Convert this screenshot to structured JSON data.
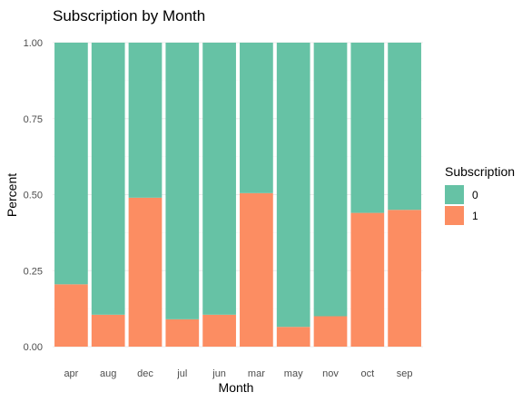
{
  "chart_data": {
    "type": "bar",
    "stacked": true,
    "title": "Subscription by Month",
    "xlabel": "Month",
    "ylabel": "Percent",
    "categories": [
      "apr",
      "aug",
      "dec",
      "jul",
      "jun",
      "mar",
      "may",
      "nov",
      "oct",
      "sep"
    ],
    "series": [
      {
        "name": "0",
        "color": "#66c2a5",
        "values": [
          0.795,
          0.895,
          0.51,
          0.91,
          0.895,
          0.495,
          0.935,
          0.9,
          0.56,
          0.55
        ]
      },
      {
        "name": "1",
        "color": "#fc8d62",
        "values": [
          0.205,
          0.105,
          0.49,
          0.09,
          0.105,
          0.505,
          0.065,
          0.1,
          0.44,
          0.45
        ]
      }
    ],
    "ylim": [
      0,
      1
    ],
    "yticks": [
      "0.00",
      "0.25",
      "0.50",
      "0.75",
      "1.00"
    ],
    "legend": {
      "title": "Subscription",
      "position": "right"
    },
    "grid": true
  }
}
